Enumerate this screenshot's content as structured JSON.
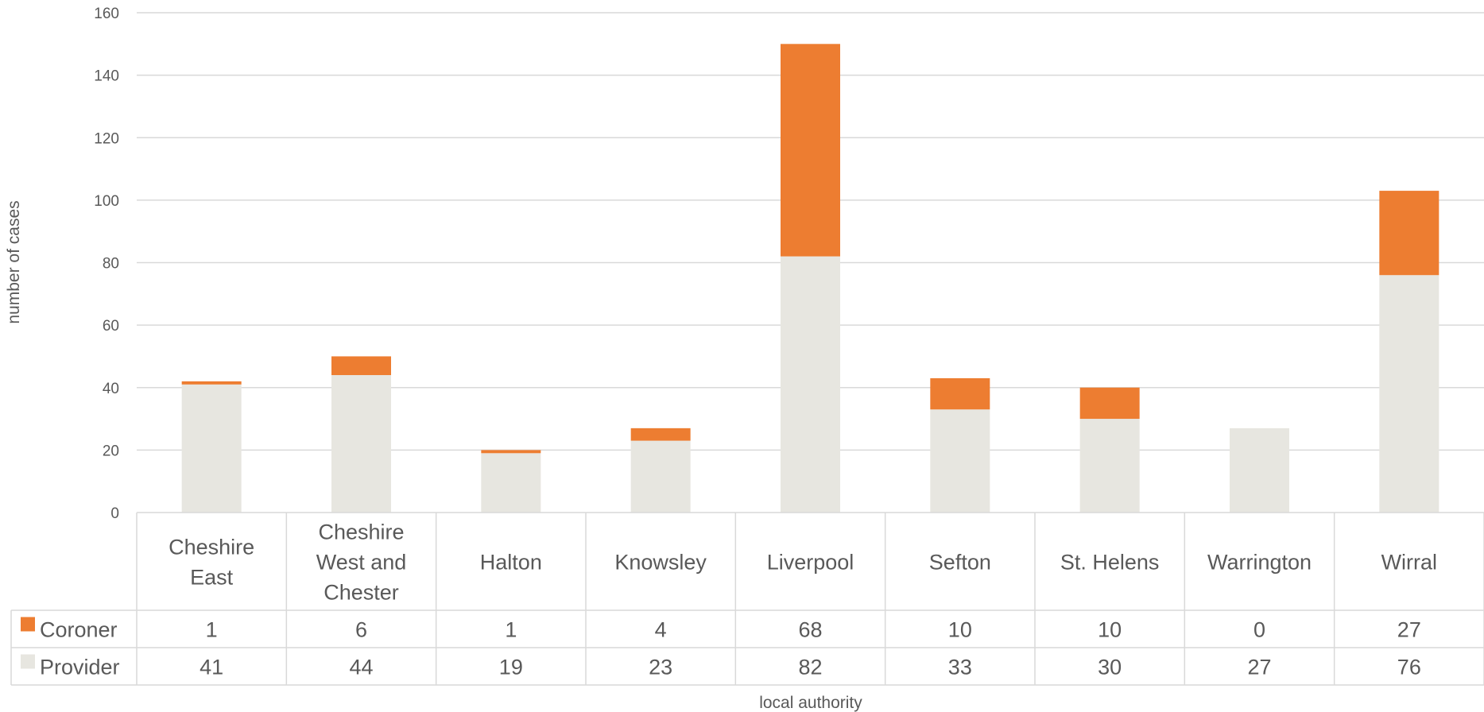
{
  "chart_data": {
    "type": "bar",
    "stacked": true,
    "categories": [
      [
        "Cheshire",
        "East"
      ],
      [
        "Cheshire",
        "West and",
        "Chester"
      ],
      [
        "Halton"
      ],
      [
        "Knowsley"
      ],
      [
        "Liverpool"
      ],
      [
        "Sefton"
      ],
      [
        "St. Helens"
      ],
      [
        "Warrington"
      ],
      [
        "Wirral"
      ]
    ],
    "series": [
      {
        "name": "Provider",
        "color": "#e7e6e0",
        "values": [
          41,
          44,
          19,
          23,
          82,
          33,
          30,
          27,
          76
        ]
      },
      {
        "name": "Coroner",
        "color": "#ed7d31",
        "values": [
          1,
          6,
          1,
          4,
          68,
          10,
          10,
          0,
          27
        ]
      }
    ],
    "table_rows": [
      "Coroner",
      "Provider"
    ],
    "xlabel": "local authority",
    "ylabel": "number of cases",
    "ylim": [
      0,
      160
    ],
    "yticks": [
      0,
      20,
      40,
      60,
      80,
      100,
      120,
      140,
      160
    ],
    "grid": true,
    "legend": "data-table"
  }
}
